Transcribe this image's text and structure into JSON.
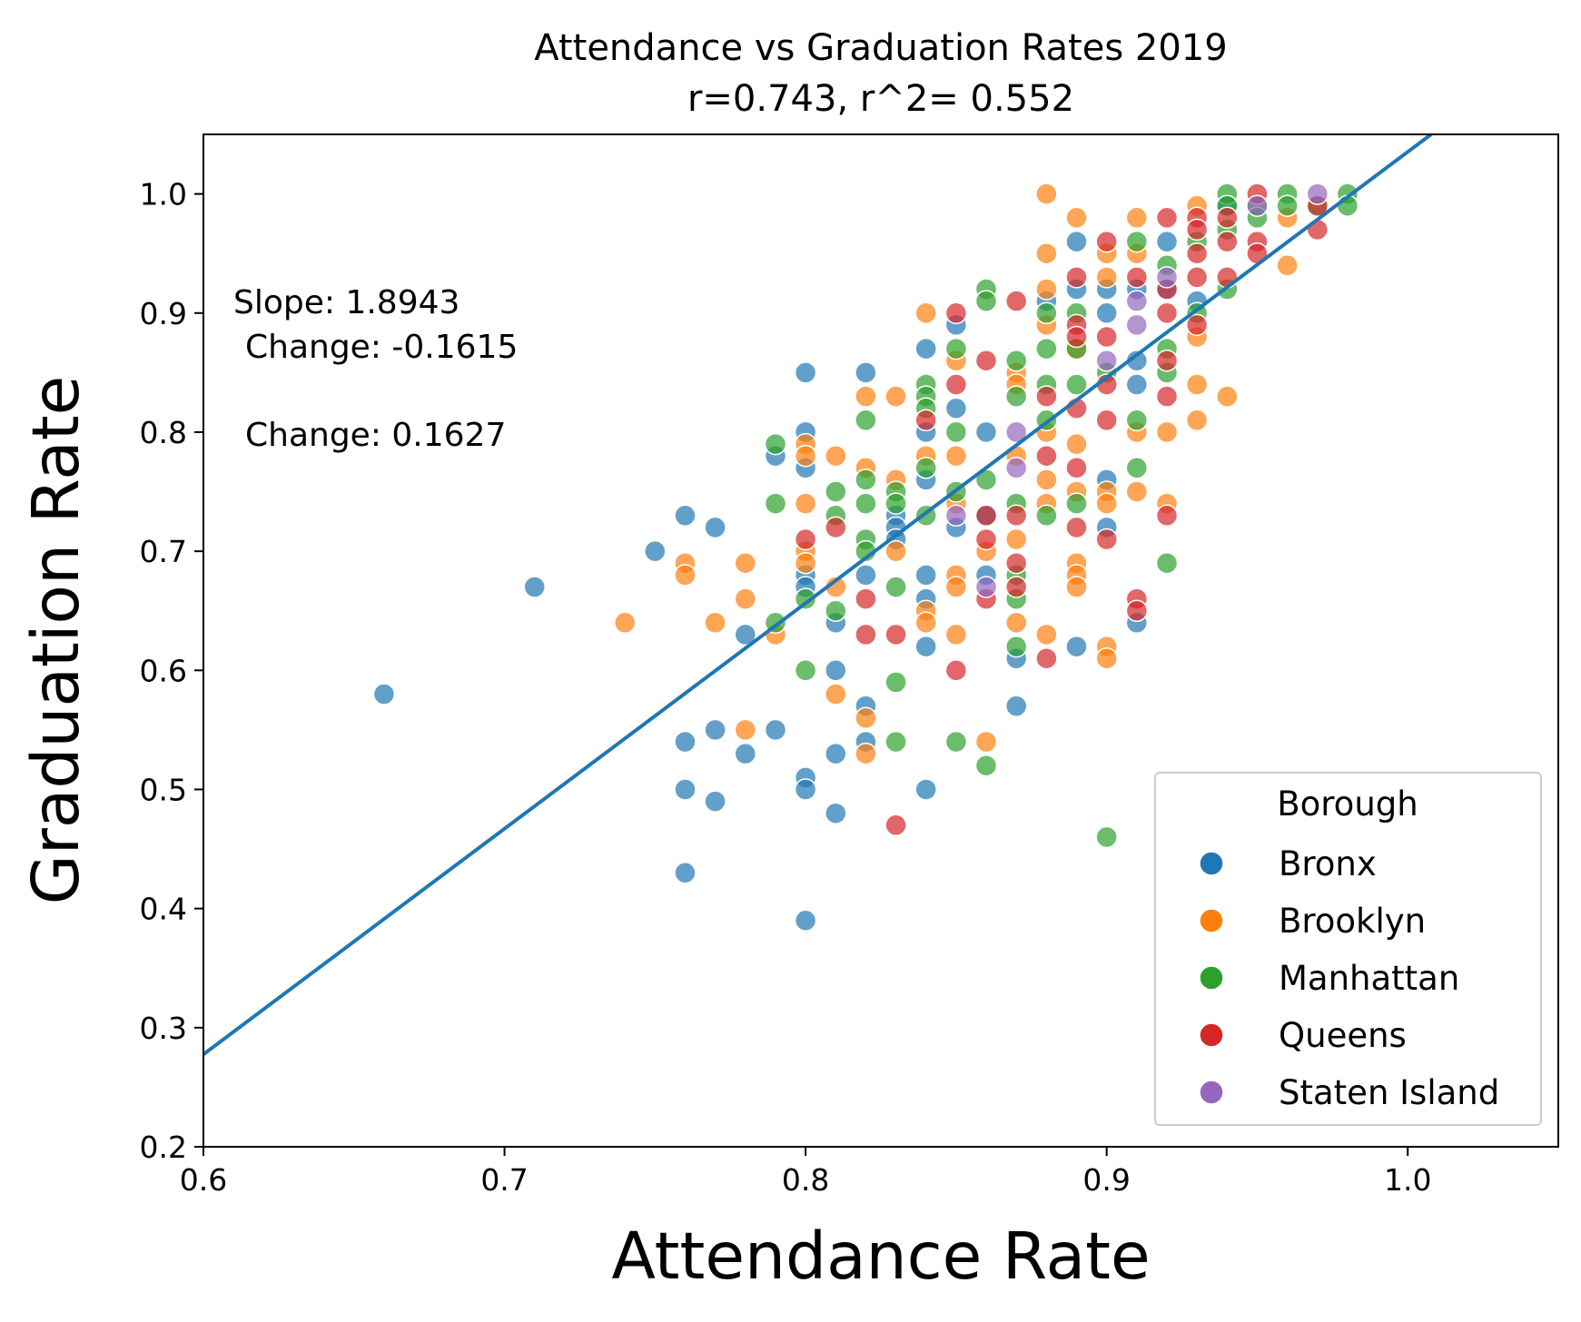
{
  "chart_data": {
    "type": "scatter",
    "title": "Attendance vs Graduation Rates 2019",
    "subtitle": "r=0.743, r^2= 0.552",
    "xlabel": "Attendance Rate",
    "ylabel": "Graduation Rate",
    "xlim": [
      0.6,
      1.05
    ],
    "ylim": [
      0.2,
      1.05
    ],
    "x_ticks": [
      "0.6",
      "0.7",
      "0.8",
      "0.9",
      "1.0"
    ],
    "y_ticks": [
      "0.2",
      "0.3",
      "0.4",
      "0.5",
      "0.6",
      "0.7",
      "0.8",
      "0.9",
      "1.0"
    ],
    "grid": false,
    "legend": {
      "title": "Borough",
      "placement": "bottom-right"
    },
    "annotations": [
      "Slope: 1.8943",
      "Change: -0.1615",
      "Change: 0.1627"
    ],
    "regression_line": {
      "slope": 1.8943,
      "intercept": -0.859,
      "color": "#1f77b4"
    },
    "series": [
      {
        "name": "Bronx",
        "color": "#1f77b4",
        "points": [
          [
            0.66,
            0.58
          ],
          [
            0.71,
            0.67
          ],
          [
            0.75,
            0.7
          ],
          [
            0.76,
            0.73
          ],
          [
            0.76,
            0.54
          ],
          [
            0.76,
            0.5
          ],
          [
            0.76,
            0.43
          ],
          [
            0.77,
            0.72
          ],
          [
            0.77,
            0.55
          ],
          [
            0.77,
            0.49
          ],
          [
            0.78,
            0.63
          ],
          [
            0.78,
            0.53
          ],
          [
            0.79,
            0.78
          ],
          [
            0.79,
            0.55
          ],
          [
            0.8,
            0.85
          ],
          [
            0.8,
            0.8
          ],
          [
            0.8,
            0.77
          ],
          [
            0.8,
            0.68
          ],
          [
            0.8,
            0.67
          ],
          [
            0.8,
            0.51
          ],
          [
            0.8,
            0.5
          ],
          [
            0.8,
            0.39
          ],
          [
            0.81,
            0.64
          ],
          [
            0.81,
            0.6
          ],
          [
            0.81,
            0.53
          ],
          [
            0.81,
            0.48
          ],
          [
            0.82,
            0.85
          ],
          [
            0.82,
            0.68
          ],
          [
            0.82,
            0.57
          ],
          [
            0.82,
            0.54
          ],
          [
            0.83,
            0.73
          ],
          [
            0.83,
            0.72
          ],
          [
            0.83,
            0.71
          ],
          [
            0.84,
            0.87
          ],
          [
            0.84,
            0.8
          ],
          [
            0.84,
            0.76
          ],
          [
            0.84,
            0.68
          ],
          [
            0.84,
            0.66
          ],
          [
            0.84,
            0.62
          ],
          [
            0.84,
            0.5
          ],
          [
            0.85,
            0.89
          ],
          [
            0.85,
            0.82
          ],
          [
            0.85,
            0.72
          ],
          [
            0.86,
            0.8
          ],
          [
            0.86,
            0.73
          ],
          [
            0.86,
            0.68
          ],
          [
            0.87,
            0.61
          ],
          [
            0.87,
            0.57
          ],
          [
            0.88,
            0.91
          ],
          [
            0.89,
            0.96
          ],
          [
            0.89,
            0.92
          ],
          [
            0.89,
            0.62
          ],
          [
            0.9,
            0.92
          ],
          [
            0.9,
            0.9
          ],
          [
            0.9,
            0.76
          ],
          [
            0.9,
            0.72
          ],
          [
            0.91,
            0.92
          ],
          [
            0.91,
            0.86
          ],
          [
            0.91,
            0.84
          ],
          [
            0.91,
            0.64
          ],
          [
            0.92,
            0.96
          ],
          [
            0.92,
            0.92
          ],
          [
            0.93,
            0.91
          ],
          [
            0.94,
            0.99
          ]
        ]
      },
      {
        "name": "Brooklyn",
        "color": "#ff7f0e",
        "points": [
          [
            0.74,
            0.64
          ],
          [
            0.76,
            0.69
          ],
          [
            0.76,
            0.68
          ],
          [
            0.77,
            0.64
          ],
          [
            0.78,
            0.69
          ],
          [
            0.78,
            0.66
          ],
          [
            0.78,
            0.55
          ],
          [
            0.79,
            0.63
          ],
          [
            0.8,
            0.79
          ],
          [
            0.8,
            0.78
          ],
          [
            0.8,
            0.74
          ],
          [
            0.8,
            0.7
          ],
          [
            0.8,
            0.69
          ],
          [
            0.81,
            0.78
          ],
          [
            0.81,
            0.67
          ],
          [
            0.81,
            0.58
          ],
          [
            0.82,
            0.83
          ],
          [
            0.82,
            0.77
          ],
          [
            0.82,
            0.56
          ],
          [
            0.82,
            0.53
          ],
          [
            0.83,
            0.83
          ],
          [
            0.83,
            0.76
          ],
          [
            0.83,
            0.7
          ],
          [
            0.84,
            0.9
          ],
          [
            0.84,
            0.78
          ],
          [
            0.84,
            0.65
          ],
          [
            0.84,
            0.64
          ],
          [
            0.85,
            0.86
          ],
          [
            0.85,
            0.78
          ],
          [
            0.85,
            0.74
          ],
          [
            0.85,
            0.68
          ],
          [
            0.85,
            0.67
          ],
          [
            0.85,
            0.63
          ],
          [
            0.86,
            0.7
          ],
          [
            0.86,
            0.54
          ],
          [
            0.87,
            0.85
          ],
          [
            0.87,
            0.84
          ],
          [
            0.87,
            0.78
          ],
          [
            0.87,
            0.71
          ],
          [
            0.87,
            0.64
          ],
          [
            0.88,
            1.0
          ],
          [
            0.88,
            0.95
          ],
          [
            0.88,
            0.92
          ],
          [
            0.88,
            0.89
          ],
          [
            0.88,
            0.8
          ],
          [
            0.88,
            0.76
          ],
          [
            0.88,
            0.74
          ],
          [
            0.88,
            0.63
          ],
          [
            0.89,
            0.98
          ],
          [
            0.89,
            0.87
          ],
          [
            0.89,
            0.79
          ],
          [
            0.89,
            0.75
          ],
          [
            0.89,
            0.69
          ],
          [
            0.89,
            0.68
          ],
          [
            0.89,
            0.67
          ],
          [
            0.9,
            0.95
          ],
          [
            0.9,
            0.93
          ],
          [
            0.9,
            0.75
          ],
          [
            0.9,
            0.74
          ],
          [
            0.9,
            0.62
          ],
          [
            0.9,
            0.61
          ],
          [
            0.91,
            0.98
          ],
          [
            0.91,
            0.95
          ],
          [
            0.91,
            0.8
          ],
          [
            0.91,
            0.75
          ],
          [
            0.92,
            0.8
          ],
          [
            0.92,
            0.74
          ],
          [
            0.93,
            0.99
          ],
          [
            0.93,
            0.88
          ],
          [
            0.93,
            0.84
          ],
          [
            0.93,
            0.81
          ],
          [
            0.94,
            0.83
          ],
          [
            0.96,
            0.98
          ],
          [
            0.96,
            0.94
          ]
        ]
      },
      {
        "name": "Manhattan",
        "color": "#2ca02c",
        "points": [
          [
            0.79,
            0.79
          ],
          [
            0.79,
            0.74
          ],
          [
            0.79,
            0.64
          ],
          [
            0.8,
            0.66
          ],
          [
            0.8,
            0.6
          ],
          [
            0.81,
            0.75
          ],
          [
            0.81,
            0.73
          ],
          [
            0.81,
            0.65
          ],
          [
            0.82,
            0.81
          ],
          [
            0.82,
            0.76
          ],
          [
            0.82,
            0.74
          ],
          [
            0.82,
            0.71
          ],
          [
            0.82,
            0.7
          ],
          [
            0.83,
            0.75
          ],
          [
            0.83,
            0.74
          ],
          [
            0.83,
            0.67
          ],
          [
            0.83,
            0.59
          ],
          [
            0.83,
            0.54
          ],
          [
            0.84,
            0.84
          ],
          [
            0.84,
            0.83
          ],
          [
            0.84,
            0.82
          ],
          [
            0.84,
            0.77
          ],
          [
            0.84,
            0.73
          ],
          [
            0.85,
            0.87
          ],
          [
            0.85,
            0.8
          ],
          [
            0.85,
            0.75
          ],
          [
            0.85,
            0.54
          ],
          [
            0.86,
            0.92
          ],
          [
            0.86,
            0.91
          ],
          [
            0.86,
            0.76
          ],
          [
            0.86,
            0.52
          ],
          [
            0.87,
            0.86
          ],
          [
            0.87,
            0.83
          ],
          [
            0.87,
            0.74
          ],
          [
            0.87,
            0.68
          ],
          [
            0.87,
            0.66
          ],
          [
            0.87,
            0.62
          ],
          [
            0.88,
            0.9
          ],
          [
            0.88,
            0.87
          ],
          [
            0.88,
            0.84
          ],
          [
            0.88,
            0.81
          ],
          [
            0.88,
            0.73
          ],
          [
            0.89,
            0.9
          ],
          [
            0.89,
            0.87
          ],
          [
            0.89,
            0.84
          ],
          [
            0.89,
            0.74
          ],
          [
            0.9,
            0.85
          ],
          [
            0.9,
            0.46
          ],
          [
            0.91,
            0.96
          ],
          [
            0.91,
            0.81
          ],
          [
            0.91,
            0.77
          ],
          [
            0.92,
            0.94
          ],
          [
            0.92,
            0.87
          ],
          [
            0.92,
            0.85
          ],
          [
            0.92,
            0.69
          ],
          [
            0.93,
            0.96
          ],
          [
            0.93,
            0.9
          ],
          [
            0.94,
            1.0
          ],
          [
            0.94,
            0.99
          ],
          [
            0.94,
            0.97
          ],
          [
            0.94,
            0.92
          ],
          [
            0.95,
            0.99
          ],
          [
            0.95,
            0.98
          ],
          [
            0.96,
            1.0
          ],
          [
            0.96,
            0.99
          ],
          [
            0.97,
            0.99
          ],
          [
            0.98,
            1.0
          ],
          [
            0.98,
            0.99
          ]
        ]
      },
      {
        "name": "Queens",
        "color": "#d62728",
        "points": [
          [
            0.8,
            0.71
          ],
          [
            0.81,
            0.72
          ],
          [
            0.82,
            0.66
          ],
          [
            0.82,
            0.63
          ],
          [
            0.83,
            0.63
          ],
          [
            0.83,
            0.47
          ],
          [
            0.84,
            0.81
          ],
          [
            0.85,
            0.9
          ],
          [
            0.85,
            0.84
          ],
          [
            0.85,
            0.6
          ],
          [
            0.86,
            0.86
          ],
          [
            0.86,
            0.73
          ],
          [
            0.86,
            0.71
          ],
          [
            0.86,
            0.66
          ],
          [
            0.87,
            0.91
          ],
          [
            0.87,
            0.73
          ],
          [
            0.87,
            0.69
          ],
          [
            0.87,
            0.67
          ],
          [
            0.88,
            0.83
          ],
          [
            0.88,
            0.78
          ],
          [
            0.88,
            0.61
          ],
          [
            0.89,
            0.93
          ],
          [
            0.89,
            0.89
          ],
          [
            0.89,
            0.88
          ],
          [
            0.89,
            0.82
          ],
          [
            0.89,
            0.77
          ],
          [
            0.89,
            0.72
          ],
          [
            0.9,
            0.96
          ],
          [
            0.9,
            0.88
          ],
          [
            0.9,
            0.84
          ],
          [
            0.9,
            0.81
          ],
          [
            0.9,
            0.71
          ],
          [
            0.91,
            0.93
          ],
          [
            0.91,
            0.66
          ],
          [
            0.91,
            0.65
          ],
          [
            0.92,
            0.98
          ],
          [
            0.92,
            0.92
          ],
          [
            0.92,
            0.9
          ],
          [
            0.92,
            0.86
          ],
          [
            0.92,
            0.83
          ],
          [
            0.92,
            0.73
          ],
          [
            0.93,
            0.98
          ],
          [
            0.93,
            0.97
          ],
          [
            0.93,
            0.95
          ],
          [
            0.93,
            0.93
          ],
          [
            0.93,
            0.89
          ],
          [
            0.94,
            0.98
          ],
          [
            0.94,
            0.96
          ],
          [
            0.94,
            0.93
          ],
          [
            0.95,
            1.0
          ],
          [
            0.95,
            0.96
          ],
          [
            0.95,
            0.95
          ],
          [
            0.97,
            0.99
          ],
          [
            0.97,
            0.97
          ]
        ]
      },
      {
        "name": "Staten Island",
        "color": "#9467bd",
        "points": [
          [
            0.85,
            0.73
          ],
          [
            0.86,
            0.67
          ],
          [
            0.87,
            0.8
          ],
          [
            0.87,
            0.77
          ],
          [
            0.9,
            0.86
          ],
          [
            0.91,
            0.91
          ],
          [
            0.91,
            0.89
          ],
          [
            0.92,
            0.93
          ],
          [
            0.95,
            0.99
          ],
          [
            0.97,
            1.0
          ]
        ]
      }
    ]
  }
}
